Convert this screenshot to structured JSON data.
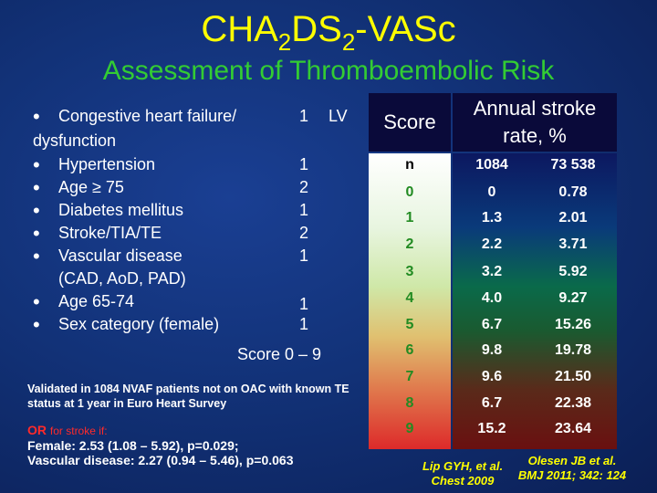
{
  "title": {
    "prefix": "CHA",
    "sub1": "2",
    "mid": "DS",
    "sub2": "2",
    "suffix": "-VASc"
  },
  "subtitle": "Assessment of Thromboembolic Risk",
  "criteria": [
    {
      "label": "Congestive heart failure/",
      "label_cont": "dysfunction",
      "points": "1",
      "extra": "LV"
    },
    {
      "label": "Hypertension",
      "points": "1"
    },
    {
      "label": "Age ≥ 75",
      "points": "2"
    },
    {
      "label": "Diabetes mellitus",
      "points": "1"
    },
    {
      "label": "Stroke/TIA/TE",
      "points": "2"
    },
    {
      "label": "Vascular disease",
      "label_cont": "(CAD, AoD, PAD)",
      "points": "1"
    },
    {
      "label": "Age 65-74",
      "points": "1"
    },
    {
      "label": "Sex category (female)",
      "points": "1"
    }
  ],
  "score_range": "Score 0 – 9",
  "validated_text": "Validated in 1084 NVAF patients not on  OAC with known TE status at 1 year in Euro Heart Survey",
  "or_text": {
    "head": "OR",
    "head_small": "for stroke if:",
    "line1": "Female: 2.53 (1.08 – 5.92), p=0.029;",
    "line2": "Vascular disease: 2.27 (0.94 – 5.46), p=0.063"
  },
  "table": {
    "header_score": "Score",
    "header_rate_1": "Annual stroke",
    "header_rate_2": "rate, %",
    "rows": [
      {
        "score": "n",
        "n": "1084",
        "rate": "73 538",
        "score_color": "#000000"
      },
      {
        "score": "0",
        "n": "0",
        "rate": "0.78",
        "score_color": "#228b22"
      },
      {
        "score": "1",
        "n": "1.3",
        "rate": "2.01",
        "score_color": "#228b22"
      },
      {
        "score": "2",
        "n": "2.2",
        "rate": "3.71",
        "score_color": "#228b22"
      },
      {
        "score": "3",
        "n": "3.2",
        "rate": "5.92",
        "score_color": "#228b22"
      },
      {
        "score": "4",
        "n": "4.0",
        "rate": "9.27",
        "score_color": "#228b22"
      },
      {
        "score": "5",
        "n": "6.7",
        "rate": "15.26",
        "score_color": "#228b22"
      },
      {
        "score": "6",
        "n": "9.8",
        "rate": "19.78",
        "score_color": "#228b22"
      },
      {
        "score": "7",
        "n": "9.6",
        "rate": "21.50",
        "score_color": "#228b22"
      },
      {
        "score": "8",
        "n": "6.7",
        "rate": "22.38",
        "score_color": "#228b22"
      },
      {
        "score": "9",
        "n": "15.2",
        "rate": "23.64",
        "score_color": "#228b22"
      }
    ]
  },
  "citations": {
    "cite1_line1": "Lip GYH, et al.",
    "cite1_line2": "Chest 2009",
    "cite2_line1": "Olesen JB et al.",
    "cite2_line2": "BMJ 2011; 342: 124"
  },
  "colors": {
    "title": "#ffff00",
    "subtitle": "#33cc33",
    "or_head": "#ff2a2a",
    "citation": "#ffff00"
  }
}
